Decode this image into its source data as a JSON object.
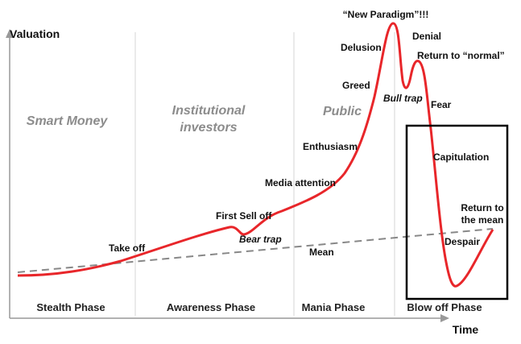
{
  "axes": {
    "y_label": "Valuation",
    "x_label": "Time"
  },
  "phases": [
    "Stealth Phase",
    "Awareness Phase",
    "Mania Phase",
    "Blow off Phase"
  ],
  "participants": {
    "smart_money": "Smart Money",
    "institutional": [
      "Institutional",
      "investors"
    ],
    "public": "Public"
  },
  "annotations": {
    "take_off": "Take off",
    "first_sell_off": "First Sell off",
    "bear_trap": "Bear trap",
    "mean": "Mean",
    "media_attention": "Media attention",
    "enthusiasm": "Enthusiasm",
    "greed": "Greed",
    "delusion": "Delusion",
    "new_paradigm": "“New Paradigm”!!!",
    "denial": "Denial",
    "return_to_normal": "Return to “normal”",
    "bull_trap": "Bull trap",
    "fear": "Fear",
    "capitulation": "Capitulation",
    "return_to_mean": [
      "Return to",
      "the mean"
    ],
    "despair": "Despair"
  }
}
